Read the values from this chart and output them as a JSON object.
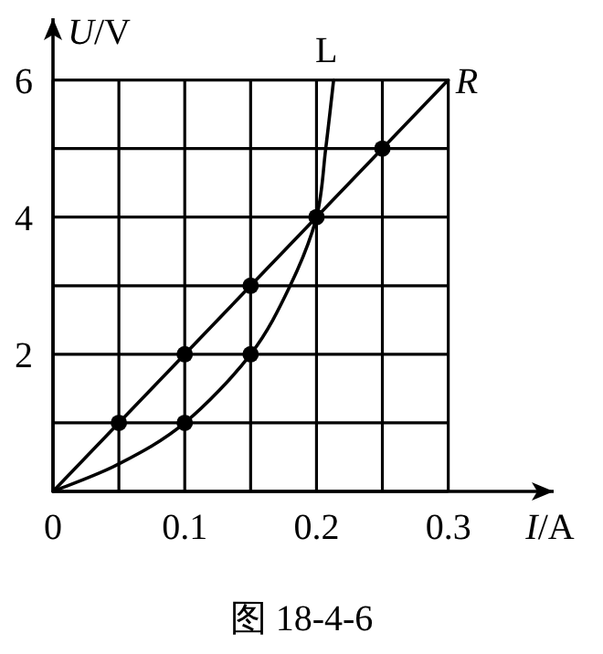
{
  "chart_data": {
    "type": "line",
    "xlabel": "*I*/A",
    "ylabel": "*U*/V",
    "annotations": [
      "图 18-4-6"
    ],
    "xlim": [
      0,
      0.38
    ],
    "ylim": [
      0,
      6.9
    ],
    "xticks": [
      {
        "value": 0,
        "label": "0"
      },
      {
        "value": 0.05,
        "label": null
      },
      0.1,
      {
        "value": 0.15,
        "label": null
      },
      0.2,
      {
        "value": 0.25,
        "label": null
      },
      0.3
    ],
    "yticks": [
      {
        "value": 0,
        "label": null
      },
      {
        "value": 1,
        "label": null
      },
      2,
      {
        "value": 3,
        "label": null
      },
      4,
      {
        "value": 5,
        "label": null
      },
      6
    ],
    "grid": true,
    "series": [
      {
        "name": "R",
        "type": "line",
        "color": "#000000",
        "x": [
          0,
          0.3
        ],
        "values": [
          0,
          6
        ]
      },
      {
        "name": "L",
        "type": "line",
        "color": "#000000",
        "x": [
          0,
          0.05,
          0.1,
          0.15,
          0.18,
          0.2,
          0.207,
          0.213
        ],
        "values": [
          0,
          0.4,
          1,
          2,
          3,
          4,
          5,
          6
        ]
      },
      {
        "type": "scatter",
        "marker": "circle",
        "color": "#000000",
        "x": [
          0.05,
          0.1,
          0.15,
          0.2,
          0.25,
          0.1,
          0.15
        ],
        "values": [
          1,
          2,
          3,
          4,
          5,
          1,
          2
        ]
      }
    ]
  }
}
